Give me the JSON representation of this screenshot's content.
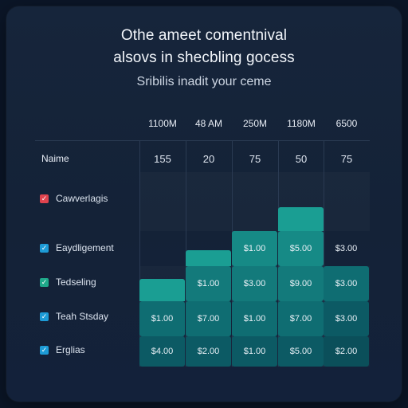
{
  "title_line1": "Othe ameet comentnival",
  "title_line2": "alsovs in shecbling gocess",
  "subtitle": "Sribilis inadit your ceme",
  "columns": [
    "1100M",
    "48 AM",
    "250M",
    "1180M",
    "6500"
  ],
  "name_header": "Naime",
  "header_values": [
    "155",
    "20",
    "75",
    "50",
    "75"
  ],
  "rows": [
    {
      "label": "Cawverlagis",
      "checkbox": "red",
      "mark": "✓"
    },
    {
      "label": "Eaydligement",
      "checkbox": "blue",
      "mark": "✓"
    },
    {
      "label": "Tedseling",
      "checkbox": "green",
      "mark": "✓"
    },
    {
      "label": "Teah Stsday",
      "checkbox": "blue",
      "mark": "✓"
    },
    {
      "label": "Erglias",
      "checkbox": "blue",
      "mark": "✓"
    }
  ],
  "cells": [
    [
      "",
      "",
      "",
      "",
      ""
    ],
    [
      "",
      "",
      "$1.00",
      "$5.00",
      "$3.00"
    ],
    [
      "",
      "$1.00",
      "$3.00",
      "$9.00",
      "$3.00"
    ],
    [
      "$1.00",
      "$7.00",
      "$1.00",
      "$7.00",
      "$3.00"
    ],
    [
      "$4.00",
      "$2.00",
      "$1.00",
      "$5.00",
      "$2.00"
    ]
  ],
  "colors": {
    "teal_light": "#1a9e93",
    "teal_mid": "#168a86",
    "teal_dark": "#0f6d72",
    "teal_deep": "#0c5a64"
  }
}
